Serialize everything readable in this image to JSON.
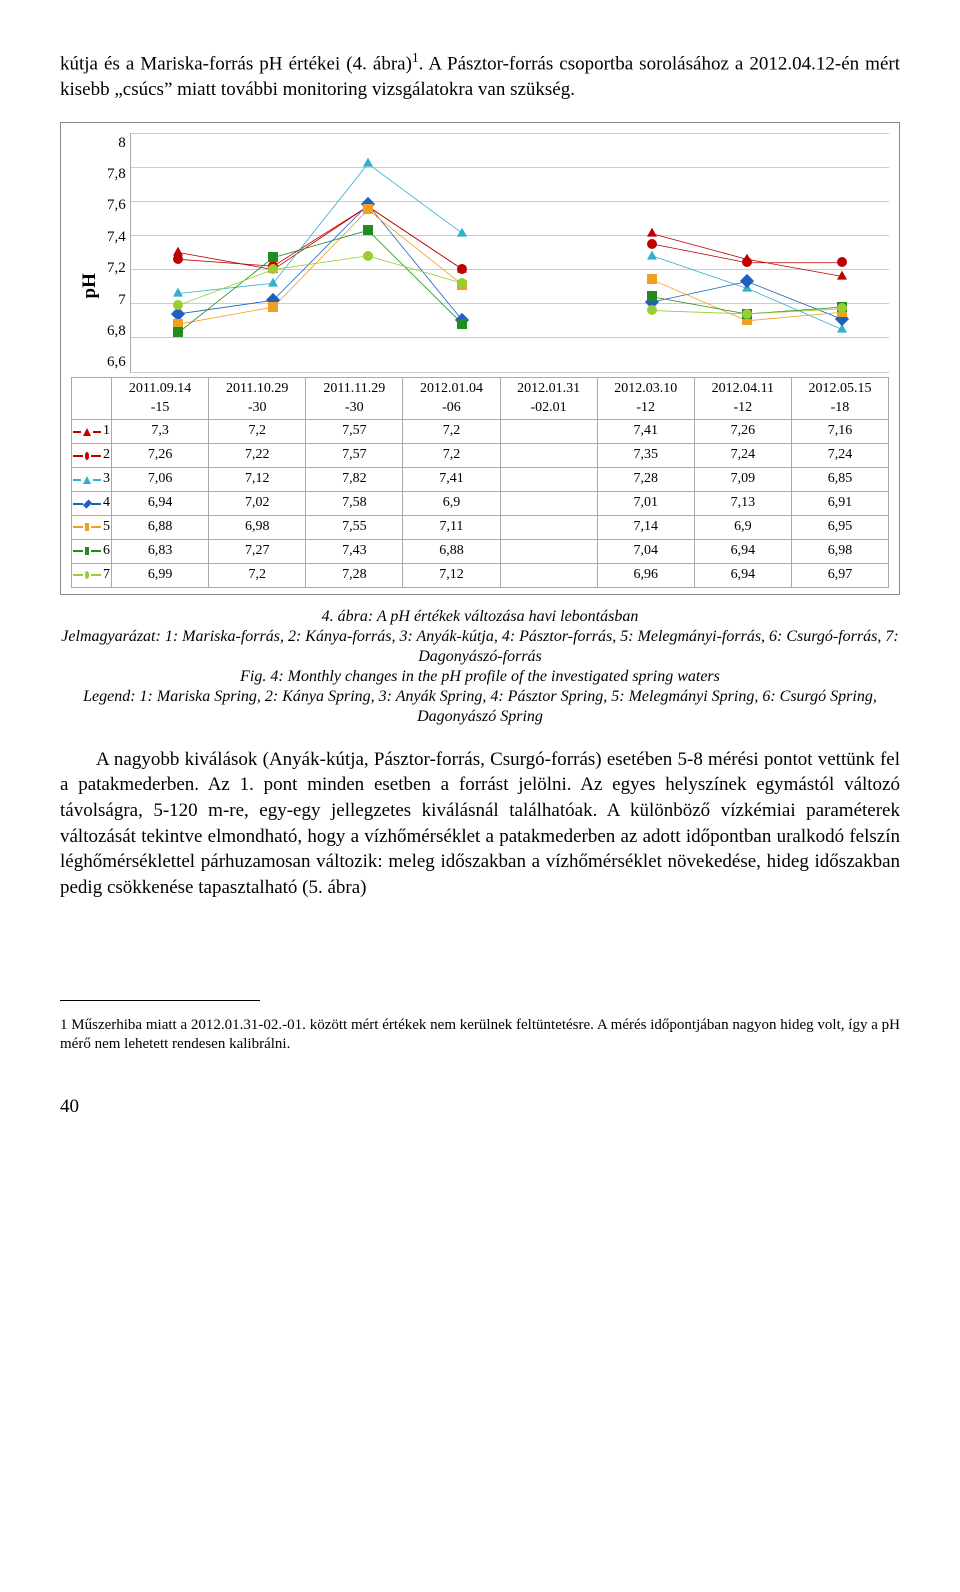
{
  "top_para": "kútja és a Mariska-forrás pH értékei (4. ábra)",
  "top_para_sup": "1",
  "top_para_cont": ". A Pásztor-forrás csoportba sorolásához a 2012.04.12-én mért kisebb „csúcs” miatt további monitoring vizsgálatokra van szükség.",
  "chart": {
    "type": "line",
    "ylabel": "pH",
    "ylim_min": 6.6,
    "ylim_max": 8.0,
    "ytick_step": 0.2,
    "yticks": [
      "8",
      "7,8",
      "7,6",
      "7,4",
      "7,2",
      "7",
      "6,8",
      "6,6"
    ],
    "grid_color": "#cccccc",
    "background_color": "#ffffff",
    "x_labels": [
      "2011.09.14-15",
      "2011.10.29-30",
      "2011.11.29-30",
      "2012.01.04-06",
      "2012.01.31-02.01",
      "2012.03.10-12",
      "2012.04.11-12",
      "2012.05.15-18"
    ],
    "series": [
      {
        "id": "1",
        "color": "#c00000",
        "marker": "tri",
        "values": [
          7.3,
          7.2,
          7.57,
          7.2,
          null,
          7.41,
          7.26,
          7.16
        ],
        "display": [
          "7,3",
          "7,2",
          "7,57",
          "7,2",
          "",
          "7,41",
          "7,26",
          "7,16"
        ]
      },
      {
        "id": "2",
        "color": "#c00000",
        "marker": "circ",
        "values": [
          7.26,
          7.22,
          7.57,
          7.2,
          null,
          7.35,
          7.24,
          7.24
        ],
        "display": [
          "7,26",
          "7,22",
          "7,57",
          "7,2",
          "",
          "7,35",
          "7,24",
          "7,24"
        ]
      },
      {
        "id": "3",
        "color": "#31b1cc",
        "marker": "tri",
        "values": [
          7.06,
          7.12,
          7.82,
          7.41,
          null,
          7.28,
          7.09,
          6.85
        ],
        "display": [
          "7,06",
          "7,12",
          "7,82",
          "7,41",
          "",
          "7,28",
          "7,09",
          "6,85"
        ]
      },
      {
        "id": "4",
        "color": "#1f5fbf",
        "marker": "diam",
        "values": [
          6.94,
          7.02,
          7.58,
          6.9,
          null,
          7.01,
          7.13,
          6.91
        ],
        "display": [
          "6,94",
          "7,02",
          "7,58",
          "6,9",
          "",
          "7,01",
          "7,13",
          "6,91"
        ]
      },
      {
        "id": "5",
        "color": "#f0a020",
        "marker": "sq",
        "values": [
          6.88,
          6.98,
          7.55,
          7.11,
          null,
          7.14,
          6.9,
          6.95
        ],
        "display": [
          "6,88",
          "6,98",
          "7,55",
          "7,11",
          "",
          "7,14",
          "6,9",
          "6,95"
        ]
      },
      {
        "id": "6",
        "color": "#228b22",
        "marker": "sq",
        "values": [
          6.83,
          7.27,
          7.43,
          6.88,
          null,
          7.04,
          6.94,
          6.98
        ],
        "display": [
          "6,83",
          "7,27",
          "7,43",
          "6,88",
          "",
          "7,04",
          "6,94",
          "6,98"
        ]
      },
      {
        "id": "7",
        "color": "#9acd32",
        "marker": "circ",
        "values": [
          6.99,
          7.2,
          7.28,
          7.12,
          null,
          6.96,
          6.94,
          6.97
        ],
        "display": [
          "6,99",
          "7,2",
          "7,28",
          "7,12",
          "",
          "6,96",
          "6,94",
          "6,97"
        ]
      }
    ]
  },
  "caption_line1": "4. ábra: A pH értékek változása havi lebontásban",
  "caption_line2": "Jelmagyarázat: 1: Mariska-forrás, 2: Kánya-forrás, 3: Anyák-kútja, 4: Pásztor-forrás, 5: Melegmányi-forrás, 6: Csurgó-forrás, 7: Dagonyászó-forrás",
  "caption_line3": "Fig. 4: Monthly changes in the pH profile of the investigated spring waters",
  "caption_line4": "Legend: 1: Mariska Spring, 2: Kánya Spring, 3: Anyák Spring, 4: Pásztor Spring, 5: Melegmányi Spring, 6: Csurgó Spring, Dagonyászó Spring",
  "para2": "A nagyobb kiválások (Anyák-kútja, Pásztor-forrás, Csurgó-forrás) esetében 5-8 mérési pontot vettünk fel a patakmederben. Az 1. pont minden esetben a forrást jelölni. Az egyes helyszínek egymástól változó távolságra, 5-120 m-re, egy-egy jellegzetes kiválásnál találhatóak. A különböző vízkémiai paraméterek változását tekintve elmondható, hogy a vízhőmérséklet a patakmederben az adott időpontban uralkodó felszín léghőmérséklettel párhuzamosan változik: meleg időszakban a vízhőmérséklet növekedése, hideg időszakban pedig csökkenése tapasztalható (5. ábra)",
  "footnote": "1 Műszerhiba miatt a 2012.01.31-02.-01. között mért értékek nem kerülnek feltüntetésre. A mérés időpontjában nagyon hideg volt, így a pH mérő nem lehetett rendesen kalibrálni.",
  "page_number": "40"
}
